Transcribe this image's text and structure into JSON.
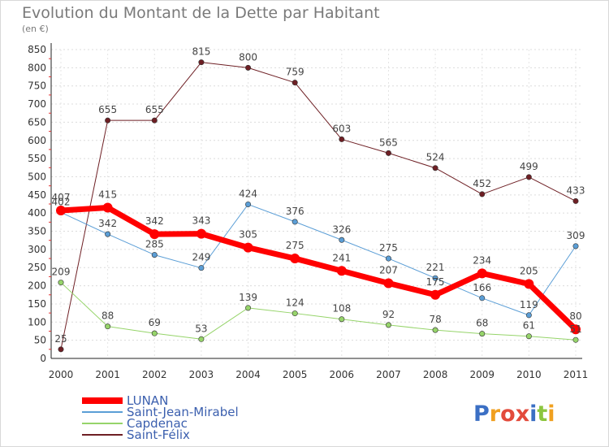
{
  "title": "Evolution du Montant de la Dette par Habitant",
  "subtitle": "(en €)",
  "logo": "Proxiti",
  "chart_data": {
    "type": "line",
    "title": "Evolution du Montant de la Dette par Habitant",
    "subtitle": "(en €)",
    "x": [
      "2000",
      "2001",
      "2002",
      "2003",
      "2004",
      "2005",
      "2006",
      "2007",
      "2008",
      "2009",
      "2010",
      "2011"
    ],
    "ylim": [
      0,
      850
    ],
    "yticks": [
      0,
      50,
      100,
      150,
      200,
      250,
      300,
      350,
      400,
      450,
      500,
      550,
      600,
      650,
      700,
      750,
      800,
      850
    ],
    "grid": true,
    "legend": "bottom-left",
    "series": [
      {
        "name": "Saint-Félix",
        "color": "#6e1f24",
        "width": 1,
        "values": [
          25,
          655,
          655,
          815,
          800,
          759,
          603,
          565,
          524,
          452,
          499,
          433
        ]
      },
      {
        "name": "Saint-Jean-Mirabel",
        "color": "#5b9ed6",
        "width": 1,
        "values": [
          402,
          342,
          285,
          249,
          424,
          376,
          326,
          275,
          221,
          166,
          119,
          309
        ]
      },
      {
        "name": "Capdenac",
        "color": "#96d46a",
        "width": 1,
        "values": [
          209,
          88,
          69,
          53,
          139,
          124,
          108,
          92,
          78,
          68,
          61,
          51
        ]
      },
      {
        "name": "LUNAN",
        "color": "#ff0000",
        "width": 7,
        "values": [
          407,
          415,
          342,
          343,
          305,
          275,
          241,
          207,
          175,
          234,
          205,
          80
        ]
      }
    ],
    "legend_order": [
      "LUNAN",
      "Saint-Jean-Mirabel",
      "Capdenac",
      "Saint-Félix"
    ]
  }
}
